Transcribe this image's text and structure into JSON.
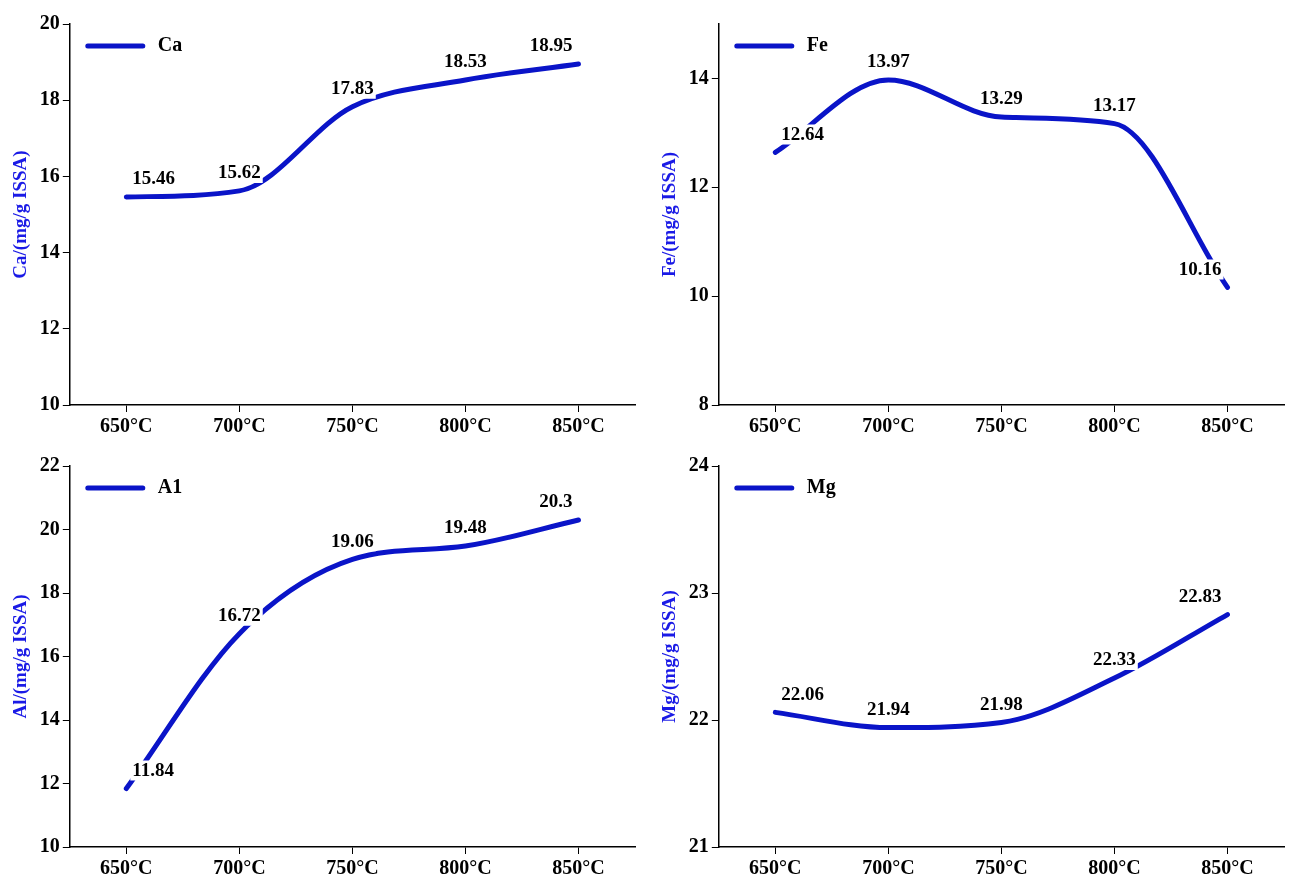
{
  "chart_data": [
    {
      "type": "line",
      "categories": [
        "650°C",
        "700°C",
        "750°C",
        "800°C",
        "850°C"
      ],
      "ylabel": "Ca/(mg/g ISSA)",
      "ylim": [
        10,
        20
      ],
      "yticks": [
        10,
        12,
        14,
        16,
        18,
        20
      ],
      "data_labels": true,
      "legend": "top left",
      "series": [
        {
          "name": "Ca",
          "color": "#0a14c8",
          "values": [
            15.46,
            15.62,
            17.83,
            18.53,
            18.95
          ]
        }
      ]
    },
    {
      "type": "line",
      "categories": [
        "650°C",
        "700°C",
        "750°C",
        "800°C",
        "850°C"
      ],
      "ylabel": "Fe/(mg/g ISSA)",
      "ylim": [
        8,
        15
      ],
      "yticks": [
        8,
        10,
        12,
        14
      ],
      "data_labels": true,
      "legend": "top left",
      "series": [
        {
          "name": "Fe",
          "color": "#0a14c8",
          "values": [
            12.64,
            13.97,
            13.29,
            13.17,
            10.16
          ]
        }
      ]
    },
    {
      "type": "line",
      "categories": [
        "650°C",
        "700°C",
        "750°C",
        "800°C",
        "850°C"
      ],
      "ylabel": "Al/(mg/g ISSA)",
      "ylim": [
        10,
        22
      ],
      "yticks": [
        10,
        12,
        14,
        16,
        18,
        20,
        22
      ],
      "data_labels": true,
      "legend": "top left",
      "series": [
        {
          "name": "A1",
          "color": "#0a14c8",
          "values": [
            11.84,
            16.72,
            19.06,
            19.48,
            20.3
          ]
        }
      ]
    },
    {
      "type": "line",
      "categories": [
        "650°C",
        "700°C",
        "750°C",
        "800°C",
        "850°C"
      ],
      "ylabel": "Mg/(mg/g ISSA)",
      "ylim": [
        21,
        24
      ],
      "yticks": [
        21,
        22,
        23,
        24
      ],
      "data_labels": true,
      "legend": "top left",
      "series": [
        {
          "name": "Mg",
          "color": "#0a14c8",
          "values": [
            22.06,
            21.94,
            21.98,
            22.33,
            22.83
          ]
        }
      ]
    }
  ]
}
